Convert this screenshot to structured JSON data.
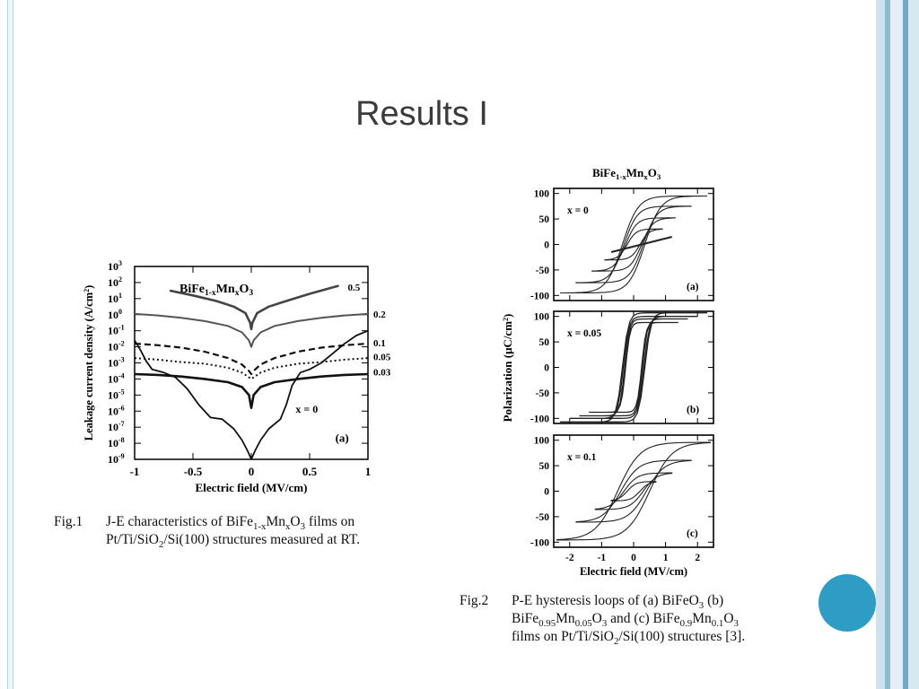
{
  "slide": {
    "title": "Results I",
    "frame_colors": [
      "#cfe2ec",
      "#8bbcd3",
      "#e4eff5",
      "#6fa9c7",
      "#d7e8f0"
    ],
    "accent_circle_color": "#2e9dc6"
  },
  "fig1": {
    "caption_label": "Fig.1",
    "caption_line1": "J-E characteristics of BiFe1-xMnxO3 films on",
    "caption_line2": "Pt/Ti/SiO2/Si(100) structures measured at RT."
  },
  "fig2": {
    "caption_label": "Fig.2",
    "caption_line1": "P-E hysteresis loops of (a) BiFeO3 (b)",
    "caption_line2": "BiFe0.95Mn0.05O3 and (c) BiFe0.9Mn0.1O3",
    "caption_line3": "films on Pt/Ti/SiO2/Si(100) structures [3]."
  },
  "chart_data": [
    {
      "type": "line",
      "panel_label": "(a)",
      "title": "BiFe1-xMnxO3",
      "xlabel": "Electric field (MV/cm)",
      "ylabel": "Leakage current density (A/cm2)",
      "xlim": [
        -1,
        1
      ],
      "xticks": [
        "-1",
        "-0.5",
        "0",
        "0.5",
        "1"
      ],
      "ylim_log10": [
        -9,
        3
      ],
      "yscale": "log",
      "yticks": [
        "10^3",
        "10^2",
        "10^1",
        "10^0",
        "10^-1",
        "10^-2",
        "10^-3",
        "10^-4",
        "10^-5",
        "10^-6",
        "10^-7",
        "10^-8",
        "10^-9"
      ],
      "grid": false,
      "annotations": [
        "x = 0"
      ],
      "series": [
        {
          "name": "0.5",
          "style": "thick",
          "points": [
            [
              -0.7,
              1.5
            ],
            [
              -0.5,
              1.2
            ],
            [
              -0.3,
              0.85
            ],
            [
              -0.15,
              0.5
            ],
            [
              -0.05,
              0.1
            ],
            [
              -0.01,
              -0.5
            ],
            [
              0,
              -0.9
            ],
            [
              0.01,
              -0.5
            ],
            [
              0.05,
              0.1
            ],
            [
              0.15,
              0.5
            ],
            [
              0.3,
              0.85
            ],
            [
              0.5,
              1.3
            ],
            [
              0.7,
              1.7
            ],
            [
              0.75,
              1.8
            ]
          ]
        },
        {
          "name": "0.2",
          "style": "solid",
          "points": [
            [
              -1,
              0.05
            ],
            [
              -0.8,
              -0.05
            ],
            [
              -0.6,
              -0.2
            ],
            [
              -0.4,
              -0.4
            ],
            [
              -0.2,
              -0.7
            ],
            [
              -0.08,
              -1.1
            ],
            [
              -0.02,
              -1.6
            ],
            [
              0,
              -2
            ],
            [
              0.02,
              -1.6
            ],
            [
              0.08,
              -1.1
            ],
            [
              0.2,
              -0.7
            ],
            [
              0.4,
              -0.4
            ],
            [
              0.6,
              -0.2
            ],
            [
              0.8,
              -0.05
            ],
            [
              1,
              0.05
            ]
          ]
        },
        {
          "name": "0.1",
          "style": "dashed",
          "points": [
            [
              -1,
              -1.8
            ],
            [
              -0.8,
              -1.9
            ],
            [
              -0.6,
              -2.05
            ],
            [
              -0.4,
              -2.3
            ],
            [
              -0.2,
              -2.7
            ],
            [
              -0.08,
              -3.1
            ],
            [
              -0.02,
              -3.5
            ],
            [
              0,
              -3.7
            ],
            [
              0.02,
              -3.5
            ],
            [
              0.08,
              -3.1
            ],
            [
              0.2,
              -2.7
            ],
            [
              0.4,
              -2.3
            ],
            [
              0.6,
              -2.05
            ],
            [
              0.8,
              -1.9
            ],
            [
              1,
              -1.8
            ]
          ]
        },
        {
          "name": "0.05",
          "style": "dotted",
          "points": [
            [
              -1,
              -2.7
            ],
            [
              -0.8,
              -2.8
            ],
            [
              -0.6,
              -2.95
            ],
            [
              -0.4,
              -3.05
            ],
            [
              -0.2,
              -3.3
            ],
            [
              -0.08,
              -3.6
            ],
            [
              0,
              -4
            ],
            [
              0.08,
              -3.6
            ],
            [
              0.2,
              -3.3
            ],
            [
              0.4,
              -3.05
            ],
            [
              0.6,
              -2.95
            ],
            [
              0.8,
              -2.8
            ],
            [
              1,
              -2.7
            ]
          ]
        },
        {
          "name": "0.03",
          "style": "thick",
          "points": [
            [
              -1,
              -3.7
            ],
            [
              -0.8,
              -3.75
            ],
            [
              -0.6,
              -3.85
            ],
            [
              -0.4,
              -4
            ],
            [
              -0.2,
              -4.2
            ],
            [
              -0.08,
              -4.5
            ],
            [
              -0.02,
              -5
            ],
            [
              0,
              -5.8
            ],
            [
              0.02,
              -5
            ],
            [
              0.08,
              -4.5
            ],
            [
              0.2,
              -4.2
            ],
            [
              0.4,
              -4
            ],
            [
              0.6,
              -3.85
            ],
            [
              0.8,
              -3.75
            ],
            [
              1,
              -3.7
            ]
          ]
        },
        {
          "name": "x = 0",
          "style": "solid",
          "points": [
            [
              -1,
              -1.6
            ],
            [
              -0.95,
              -2.2
            ],
            [
              -0.9,
              -2.9
            ],
            [
              -0.85,
              -3.4
            ],
            [
              -0.75,
              -3.6
            ],
            [
              -0.65,
              -3.9
            ],
            [
              -0.55,
              -4.6
            ],
            [
              -0.45,
              -5.6
            ],
            [
              -0.35,
              -6.4
            ],
            [
              -0.25,
              -6.5
            ],
            [
              -0.15,
              -7.1
            ],
            [
              -0.08,
              -7.8
            ],
            [
              -0.03,
              -8.5
            ],
            [
              0,
              -9
            ],
            [
              0.03,
              -8.5
            ],
            [
              0.08,
              -7.8
            ],
            [
              0.15,
              -7.1
            ],
            [
              0.25,
              -6.5
            ],
            [
              0.3,
              -5.6
            ],
            [
              0.35,
              -4.4
            ],
            [
              0.42,
              -3.6
            ],
            [
              0.5,
              -3.4
            ],
            [
              0.6,
              -3.0
            ],
            [
              0.7,
              -2.4
            ],
            [
              0.8,
              -1.8
            ],
            [
              0.9,
              -1.3
            ],
            [
              1,
              -1.0
            ]
          ]
        }
      ]
    },
    {
      "type": "line",
      "title": "BiFe1-xMnxO3",
      "xlabel": "Electric field (MV/cm)",
      "ylabel": "Polarization (μC/cm2)",
      "xlim": [
        -2.5,
        2.5
      ],
      "xticks": [
        "-2",
        "-1",
        "0",
        "1",
        "2"
      ],
      "ylim": [
        -110,
        110
      ],
      "yticks": [
        "100",
        "50",
        "0",
        "-50",
        "-100"
      ],
      "grid": false,
      "panels": [
        {
          "label": "(a)",
          "composition": "x = 0",
          "loops": [
            {
              "Ec": 0.35,
              "Emax": 2.3,
              "Ps": 95
            },
            {
              "Ec": 0.3,
              "Emax": 1.8,
              "Ps": 75
            },
            {
              "Ec": 0.25,
              "Emax": 1.3,
              "Ps": 52
            },
            {
              "Ec": 0.2,
              "Emax": 0.9,
              "Ps": 30
            }
          ],
          "linear_segment": [
            [
              -0.7,
              -15
            ],
            [
              1.2,
              15
            ]
          ]
        },
        {
          "label": "(b)",
          "composition": "x = 0.05",
          "loops": [
            {
              "Ec": 0.35,
              "Emax": 2.3,
              "Ps": 107
            },
            {
              "Ec": 0.32,
              "Emax": 2.0,
              "Ps": 100
            },
            {
              "Ec": 0.28,
              "Emax": 1.7,
              "Ps": 95
            },
            {
              "Ec": 0.25,
              "Emax": 1.4,
              "Ps": 88
            }
          ]
        },
        {
          "label": "(c)",
          "composition": "x = 0.1",
          "loops": [
            {
              "Ec": 0.5,
              "Emax": 2.4,
              "Ps": 95
            },
            {
              "Ec": 0.4,
              "Emax": 1.8,
              "Ps": 60
            },
            {
              "Ec": 0.3,
              "Emax": 1.2,
              "Ps": 35
            },
            {
              "Ec": 0.2,
              "Emax": 0.7,
              "Ps": 18
            }
          ]
        }
      ]
    }
  ]
}
